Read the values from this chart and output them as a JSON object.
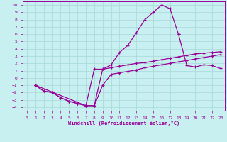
{
  "xlabel": "Windchill (Refroidissement éolien,°C)",
  "bg_color": "#c8f0f0",
  "grid_color": "#a8d8d8",
  "line_color": "#990099",
  "xlim": [
    -0.5,
    23.5
  ],
  "ylim": [
    -4.5,
    10.5
  ],
  "xticks": [
    0,
    1,
    2,
    3,
    4,
    5,
    6,
    7,
    8,
    9,
    10,
    11,
    12,
    13,
    14,
    15,
    16,
    17,
    18,
    19,
    20,
    21,
    22,
    23
  ],
  "yticks": [
    -4,
    -3,
    -2,
    -1,
    0,
    1,
    2,
    3,
    4,
    5,
    6,
    7,
    8,
    9,
    10
  ],
  "curve_upper_x": [
    1,
    2,
    3,
    4,
    5,
    6,
    7,
    8,
    9,
    10,
    11,
    12,
    13,
    14,
    15,
    16,
    17,
    18
  ],
  "curve_upper_y": [
    -1,
    -1.8,
    -2,
    -2.7,
    -3.2,
    -3.5,
    -3.8,
    -3.8,
    1.2,
    1.8,
    3.5,
    4.5,
    6.2,
    8.0,
    9.0,
    10.0,
    9.5,
    6.0
  ],
  "curve_lower_x": [
    1,
    2,
    3,
    4,
    5,
    6,
    7,
    8,
    9,
    10,
    11,
    12,
    13,
    14,
    15,
    16,
    17,
    18,
    19,
    20,
    21,
    22,
    23
  ],
  "curve_lower_y": [
    -1,
    -1.8,
    -2,
    -2.7,
    -3.2,
    -3.5,
    -3.8,
    -3.8,
    -1,
    0.5,
    0.7,
    0.9,
    1.1,
    1.4,
    1.6,
    1.8,
    2.0,
    2.2,
    2.4,
    2.6,
    2.8,
    3.0,
    3.2
  ],
  "curve_mid_x": [
    1,
    7,
    8,
    9,
    10,
    11,
    12,
    13,
    14,
    15,
    16,
    17,
    18,
    19,
    20,
    21,
    22,
    23
  ],
  "curve_mid_y": [
    -1,
    -3.8,
    1.2,
    1.2,
    1.4,
    1.6,
    1.8,
    2.0,
    2.1,
    2.3,
    2.5,
    2.7,
    2.9,
    3.1,
    3.3,
    3.4,
    3.5,
    3.6
  ],
  "curve_right_x": [
    18,
    19,
    20,
    21,
    22,
    23
  ],
  "curve_right_y": [
    6.0,
    1.7,
    1.5,
    1.8,
    1.7,
    1.3
  ]
}
